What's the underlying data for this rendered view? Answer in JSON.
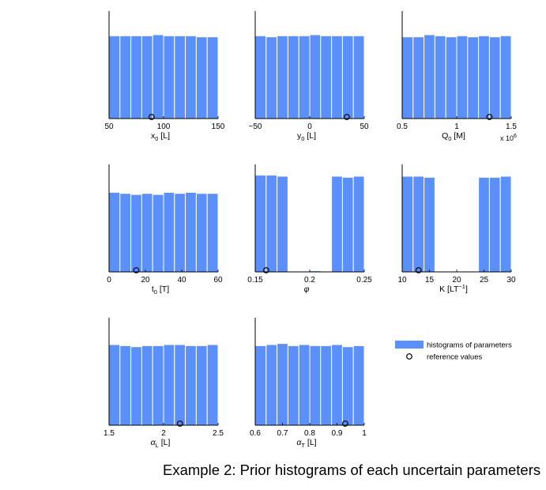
{
  "figure": {
    "caption": "Example 2: Prior histograms of each uncertain parameters",
    "bar_color": "#5b8ff9",
    "marker_color": "#000000"
  },
  "legend": {
    "placement": "right",
    "items": [
      {
        "label": "histograms of parameters",
        "symbol": "bar"
      },
      {
        "label": "reference values",
        "symbol": "circle"
      }
    ]
  },
  "chart_data": [
    {
      "type": "bar",
      "title": "",
      "xlabel": "x₀ [L]",
      "xlabel_parts": {
        "main": "x",
        "sub": "0",
        "unit": " [L]"
      },
      "xlim": [
        50,
        150
      ],
      "xticks": [
        {
          "v": 50,
          "label": "50"
        },
        {
          "v": 100,
          "label": "100"
        },
        {
          "v": 150,
          "label": "150"
        }
      ],
      "ylim": [
        0,
        1
      ],
      "yticks": [],
      "bar_heights": [
        0.77,
        0.77,
        0.77,
        0.77,
        0.78,
        0.77,
        0.77,
        0.77,
        0.76,
        0.76
      ],
      "reference_value": 89,
      "axis_multiplier": ""
    },
    {
      "type": "bar",
      "title": "",
      "xlabel": "y₀ [L]",
      "xlabel_parts": {
        "main": "y",
        "sub": "0",
        "unit": " [L]"
      },
      "xlim": [
        -50,
        50
      ],
      "xticks": [
        {
          "v": -50,
          "label": "−50"
        },
        {
          "v": 0,
          "label": "0"
        },
        {
          "v": 50,
          "label": "50"
        }
      ],
      "ylim": [
        0,
        1
      ],
      "yticks": [],
      "bar_heights": [
        0.77,
        0.76,
        0.77,
        0.77,
        0.77,
        0.78,
        0.77,
        0.77,
        0.77,
        0.77
      ],
      "reference_value": 34,
      "axis_multiplier": ""
    },
    {
      "type": "bar",
      "title": "",
      "xlabel": "Q₀ [M]",
      "xlabel_parts": {
        "main": "Q",
        "sub": "0",
        "unit": " [M]"
      },
      "xlim": [
        0.5,
        1.5
      ],
      "xticks": [
        {
          "v": 0.5,
          "label": "0.5"
        },
        {
          "v": 1.0,
          "label": "1"
        },
        {
          "v": 1.5,
          "label": "1.5"
        }
      ],
      "ylim": [
        0,
        1
      ],
      "yticks": [],
      "bar_heights": [
        0.76,
        0.76,
        0.78,
        0.77,
        0.76,
        0.77,
        0.76,
        0.77,
        0.76,
        0.77
      ],
      "reference_value": 1.3,
      "axis_multiplier": "x 10⁶",
      "axis_multiplier_parts": {
        "base": "x 10",
        "exp": "6"
      }
    },
    {
      "type": "bar",
      "title": "",
      "xlabel": "t₀ [T]",
      "xlabel_parts": {
        "main": "t",
        "sub": "0",
        "unit": " [T]"
      },
      "xlim": [
        0,
        60
      ],
      "xticks": [
        {
          "v": 0,
          "label": "0"
        },
        {
          "v": 20,
          "label": "20"
        },
        {
          "v": 40,
          "label": "40"
        },
        {
          "v": 60,
          "label": "60"
        }
      ],
      "ylim": [
        0,
        1
      ],
      "yticks": [],
      "bar_heights": [
        0.74,
        0.73,
        0.72,
        0.73,
        0.72,
        0.74,
        0.73,
        0.74,
        0.73,
        0.73
      ],
      "reference_value": 15,
      "axis_multiplier": ""
    },
    {
      "type": "bar",
      "title": "",
      "xlabel": "φ",
      "xlabel_parts": {
        "main": "φ",
        "sub": "",
        "unit": ""
      },
      "xlim": [
        0.15,
        0.25
      ],
      "xticks": [
        {
          "v": 0.15,
          "label": "0.15"
        },
        {
          "v": 0.2,
          "label": "0.2"
        },
        {
          "v": 0.25,
          "label": "0.25"
        }
      ],
      "ylim": [
        0,
        1
      ],
      "yticks": [],
      "bar_heights": [
        0.9,
        0.9,
        0.89,
        0,
        0,
        0.01,
        0,
        0.89,
        0.88,
        0.89
      ],
      "reference_value": 0.16,
      "axis_multiplier": ""
    },
    {
      "type": "bar",
      "title": "",
      "xlabel": "K [LT⁻¹]",
      "xlabel_parts": {
        "main": "K",
        "sub": "",
        "unit": " [LT",
        "sup": "−1",
        "unit_end": "]"
      },
      "xlim": [
        10,
        30
      ],
      "xticks": [
        {
          "v": 10,
          "label": "10"
        },
        {
          "v": 15,
          "label": "15"
        },
        {
          "v": 20,
          "label": "20"
        },
        {
          "v": 25,
          "label": "25"
        },
        {
          "v": 30,
          "label": "30"
        }
      ],
      "ylim": [
        0,
        1
      ],
      "yticks": [],
      "bar_heights": [
        0.89,
        0.89,
        0.88,
        0,
        0,
        0,
        0,
        0.88,
        0.88,
        0.89
      ],
      "reference_value": 13,
      "axis_multiplier": ""
    },
    {
      "type": "bar",
      "title": "",
      "xlabel": "α_L [L]",
      "xlabel_parts": {
        "main": "α",
        "sub": "L",
        "unit": " [L]"
      },
      "xlim": [
        1.5,
        2.5
      ],
      "xticks": [
        {
          "v": 1.5,
          "label": "1.5"
        },
        {
          "v": 2.0,
          "label": "2"
        },
        {
          "v": 2.5,
          "label": "2.5"
        }
      ],
      "ylim": [
        0,
        1
      ],
      "yticks": [],
      "bar_heights": [
        0.75,
        0.74,
        0.73,
        0.74,
        0.74,
        0.75,
        0.75,
        0.74,
        0.74,
        0.75
      ],
      "reference_value": 2.15,
      "axis_multiplier": ""
    },
    {
      "type": "bar",
      "title": "",
      "xlabel": "α_T [L]",
      "xlabel_parts": {
        "main": "α",
        "sub": "T",
        "unit": " [L]"
      },
      "xlim": [
        0.6,
        1.0
      ],
      "xticks": [
        {
          "v": 0.6,
          "label": "0.6"
        },
        {
          "v": 0.7,
          "label": "0.7"
        },
        {
          "v": 0.8,
          "label": "0.8"
        },
        {
          "v": 0.9,
          "label": "0.9"
        },
        {
          "v": 1.0,
          "label": "1"
        }
      ],
      "ylim": [
        0,
        1
      ],
      "yticks": [],
      "bar_heights": [
        0.74,
        0.75,
        0.76,
        0.74,
        0.75,
        0.74,
        0.74,
        0.75,
        0.73,
        0.74
      ],
      "reference_value": 0.93,
      "axis_multiplier": ""
    }
  ]
}
